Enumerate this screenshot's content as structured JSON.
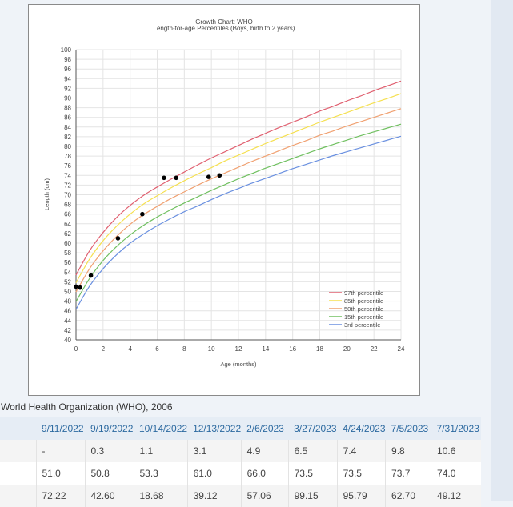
{
  "chart_data": {
    "type": "line",
    "title": "Growth Chart: WHO",
    "subtitle": "Length-for-age Percentiles (Boys, birth to 2 years)",
    "xlabel": "Age (months)",
    "ylabel": "Length (cm)",
    "xlim": [
      0,
      24
    ],
    "ylim": [
      40,
      100
    ],
    "xticks": [
      0,
      2,
      4,
      6,
      8,
      10,
      12,
      14,
      16,
      18,
      20,
      22,
      24
    ],
    "yticks": [
      40,
      42,
      44,
      46,
      48,
      50,
      52,
      54,
      56,
      58,
      60,
      62,
      64,
      66,
      68,
      70,
      72,
      74,
      76,
      78,
      80,
      82,
      84,
      86,
      88,
      90,
      92,
      94,
      96,
      98,
      100
    ],
    "grid": true,
    "legend_position": "bottom-right",
    "x": [
      0,
      1,
      2,
      3,
      4,
      5,
      6,
      7,
      8,
      9,
      10,
      11,
      12,
      13,
      14,
      15,
      16,
      17,
      18,
      19,
      20,
      21,
      22,
      23,
      24
    ],
    "series": [
      {
        "name": "97th percentile",
        "color": "#e06070",
        "values": [
          53.4,
          58.4,
          62.2,
          65.3,
          67.8,
          69.9,
          71.6,
          73.2,
          74.7,
          76.2,
          77.6,
          78.9,
          80.2,
          81.5,
          82.7,
          83.9,
          85.0,
          86.1,
          87.3,
          88.3,
          89.4,
          90.4,
          91.5,
          92.5,
          93.5
        ]
      },
      {
        "name": "85th percentile",
        "color": "#f5e050",
        "values": [
          51.8,
          56.7,
          60.5,
          63.5,
          66.0,
          68.1,
          69.8,
          71.4,
          72.9,
          74.3,
          75.6,
          77.0,
          78.2,
          79.4,
          80.6,
          81.7,
          82.8,
          83.9,
          85.0,
          86.0,
          87.0,
          88.0,
          89.0,
          89.9,
          90.9
        ]
      },
      {
        "name": "50th percentile",
        "color": "#f0a070",
        "values": [
          49.9,
          54.7,
          58.4,
          61.4,
          63.9,
          65.9,
          67.6,
          69.2,
          70.6,
          72.0,
          73.3,
          74.5,
          75.7,
          76.9,
          78.0,
          79.1,
          80.2,
          81.2,
          82.3,
          83.2,
          84.2,
          85.1,
          86.0,
          86.9,
          87.8
        ]
      },
      {
        "name": "15th percentile",
        "color": "#70c060",
        "values": [
          47.9,
          52.7,
          56.4,
          59.3,
          61.7,
          63.7,
          65.4,
          66.9,
          68.3,
          69.6,
          70.9,
          72.1,
          73.3,
          74.4,
          75.5,
          76.5,
          77.5,
          78.5,
          79.5,
          80.4,
          81.3,
          82.2,
          83.0,
          83.8,
          84.6
        ]
      },
      {
        "name": "3rd percentile",
        "color": "#6a90e0",
        "values": [
          46.3,
          51.1,
          54.7,
          57.6,
          60.0,
          61.9,
          63.6,
          65.1,
          66.5,
          67.7,
          69.0,
          70.2,
          71.3,
          72.4,
          73.4,
          74.4,
          75.4,
          76.3,
          77.2,
          78.1,
          78.9,
          79.7,
          80.5,
          81.3,
          82.1
        ]
      }
    ],
    "measurements": {
      "color": "#000000",
      "x": [
        0,
        0.3,
        1.1,
        3.1,
        4.9,
        6.5,
        7.4,
        9.8,
        10.6
      ],
      "y": [
        51.0,
        50.8,
        53.3,
        61.0,
        66.0,
        73.5,
        73.5,
        73.7,
        74.0
      ]
    }
  },
  "source": "World Health Organization (WHO), 2006",
  "table": {
    "headers": [
      "",
      "9/11/2022",
      "9/19/2022",
      "10/14/2022",
      "12/13/2022",
      "2/6/2023",
      "3/27/2023",
      "4/24/2023",
      "7/5/2023",
      "7/31/2023"
    ],
    "rows": [
      [
        "",
        "-",
        "0.3",
        "1.1",
        "3.1",
        "4.9",
        "6.5",
        "7.4",
        "9.8",
        "10.6"
      ],
      [
        "",
        "51.0",
        "50.8",
        "53.3",
        "61.0",
        "66.0",
        "73.5",
        "73.5",
        "73.7",
        "74.0"
      ],
      [
        "",
        "72.22",
        "42.60",
        "18.68",
        "39.12",
        "57.06",
        "99.15",
        "95.79",
        "62.70",
        "49.12"
      ]
    ]
  }
}
